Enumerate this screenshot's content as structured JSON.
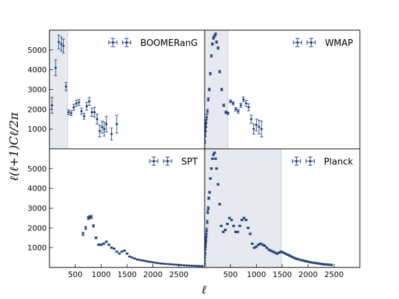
{
  "figure": {
    "xlabel": "ℓ",
    "ylabel": "ℓ(ℓ+1)Cℓ/2π"
  },
  "chart_data": [
    {
      "type": "scatter",
      "legend": "BOOMERanG",
      "legend_placement": "top-right",
      "xlim": [
        0,
        3000
      ],
      "ylim": [
        0,
        6000
      ],
      "yticks": [
        1000,
        2000,
        3000,
        4000,
        5000
      ],
      "xticks": [],
      "shaded_range": [
        0,
        350
      ],
      "series_color": "#1f3f7a",
      "x": [
        50,
        120,
        180,
        230,
        270,
        320,
        370,
        420,
        470,
        520,
        570,
        620,
        670,
        720,
        770,
        820,
        870,
        920,
        970,
        1020,
        1060,
        1100,
        1200,
        1300
      ],
      "y": [
        2200,
        4100,
        5400,
        5300,
        5200,
        3150,
        1850,
        1800,
        2100,
        2300,
        2350,
        1900,
        1650,
        2150,
        2400,
        1850,
        1850,
        1500,
        900,
        1100,
        1000,
        1250,
        750,
        1250
      ],
      "yerr": [
        400,
        400,
        350,
        350,
        350,
        200,
        120,
        120,
        150,
        150,
        150,
        150,
        150,
        200,
        200,
        200,
        250,
        250,
        300,
        300,
        350,
        400,
        300,
        450
      ]
    },
    {
      "type": "scatter",
      "legend": "WMAP",
      "legend_placement": "top-right",
      "xlim": [
        0,
        3000
      ],
      "ylim": [
        0,
        6000
      ],
      "yticks": [],
      "xticks": [],
      "shaded_range": [
        0,
        450
      ],
      "series_color": "#1f3f7a",
      "x": [
        3,
        6,
        10,
        15,
        20,
        30,
        40,
        55,
        70,
        90,
        110,
        130,
        150,
        170,
        190,
        210,
        230,
        260,
        290,
        330,
        370,
        410,
        450,
        500,
        550,
        600,
        650,
        700,
        750,
        800,
        850,
        900,
        950,
        1000,
        1050,
        1100
      ],
      "y": [
        300,
        900,
        1100,
        900,
        1100,
        1300,
        1600,
        1900,
        2500,
        3000,
        3800,
        4700,
        5300,
        5600,
        5700,
        5800,
        5400,
        5100,
        3900,
        3000,
        2200,
        1850,
        1800,
        2400,
        2300,
        2000,
        1900,
        2200,
        2500,
        2300,
        2100,
        1500,
        1000,
        1200,
        1100,
        1000
      ],
      "yerr": [
        700,
        500,
        400,
        300,
        250,
        200,
        150,
        100,
        80,
        70,
        60,
        60,
        60,
        60,
        60,
        60,
        60,
        60,
        60,
        60,
        60,
        60,
        60,
        70,
        80,
        90,
        100,
        100,
        120,
        150,
        180,
        200,
        250,
        300,
        350,
        400
      ]
    },
    {
      "type": "scatter",
      "legend": "SPT",
      "legend_placement": "top-right",
      "xlim": [
        0,
        3000
      ],
      "ylim": [
        0,
        6000
      ],
      "yticks": [
        1000,
        2000,
        3000,
        4000,
        5000
      ],
      "xticks": [
        500,
        1000,
        1500,
        2000,
        2500
      ],
      "shaded_range": null,
      "series_color": "#1f3f7a",
      "x": [
        650,
        700,
        750,
        780,
        810,
        850,
        900,
        950,
        1000,
        1050,
        1100,
        1150,
        1200,
        1250,
        1300,
        1350,
        1400,
        1450,
        1500,
        1550,
        1600,
        1650,
        1700,
        1750,
        1800,
        1850,
        1900,
        1950,
        2000,
        2050,
        2100,
        2150,
        2200,
        2250,
        2300,
        2350,
        2400,
        2450,
        2500,
        2550,
        2600,
        2650,
        2700,
        2750,
        2800,
        2850,
        2900,
        2950
      ],
      "y": [
        1700,
        2000,
        2500,
        2550,
        2550,
        2100,
        1500,
        1150,
        1150,
        1200,
        1300,
        1150,
        1000,
        950,
        800,
        700,
        800,
        850,
        700,
        550,
        500,
        450,
        400,
        380,
        350,
        330,
        300,
        280,
        260,
        240,
        220,
        200,
        190,
        180,
        170,
        160,
        150,
        140,
        130,
        120,
        110,
        100,
        95,
        90,
        85,
        80,
        75,
        70
      ],
      "yerr": [
        80,
        80,
        80,
        80,
        80,
        60,
        50,
        40,
        40,
        40,
        40,
        35,
        35,
        30,
        30,
        30,
        30,
        30,
        30,
        25,
        25,
        20,
        20,
        20,
        20,
        20,
        20,
        20,
        15,
        15,
        15,
        15,
        15,
        15,
        15,
        15,
        15,
        15,
        15,
        15,
        15,
        15,
        15,
        15,
        15,
        15,
        15,
        15
      ]
    },
    {
      "type": "scatter",
      "legend": "Planck",
      "legend_placement": "top-right",
      "xlim": [
        0,
        3000
      ],
      "ylim": [
        0,
        6000
      ],
      "yticks": [],
      "xticks": [
        500,
        1000,
        1500,
        2000,
        2500
      ],
      "shaded_range": [
        0,
        1480
      ],
      "series_color": "#1f3f7a",
      "x": [
        2,
        4,
        6,
        8,
        10,
        12,
        15,
        18,
        22,
        27,
        33,
        40,
        50,
        60,
        70,
        80,
        95,
        110,
        130,
        150,
        170,
        190,
        210,
        230,
        260,
        290,
        320,
        360,
        400,
        440,
        480,
        520,
        560,
        600,
        640,
        680,
        720,
        760,
        800,
        840,
        880,
        920,
        960,
        1000,
        1040,
        1080,
        1120,
        1160,
        1200,
        1240,
        1280,
        1320,
        1360,
        1400,
        1440,
        1480,
        1520,
        1560,
        1600,
        1640,
        1680,
        1720,
        1760,
        1800,
        1850,
        1900,
        1950,
        2000,
        2050,
        2100,
        2150,
        2200,
        2250,
        2300,
        2350,
        2400,
        2450
      ],
      "y": [
        200,
        500,
        700,
        900,
        1000,
        1100,
        1200,
        1300,
        1400,
        1500,
        1700,
        1900,
        2300,
        2800,
        3000,
        3500,
        3800,
        4500,
        5000,
        5500,
        5700,
        5800,
        5500,
        5000,
        4200,
        3200,
        2100,
        1800,
        1900,
        2200,
        2500,
        2400,
        2100,
        1800,
        1800,
        2100,
        2400,
        2500,
        2400,
        2000,
        1700,
        1200,
        1000,
        1050,
        1150,
        1200,
        1150,
        1100,
        1000,
        900,
        850,
        800,
        750,
        700,
        750,
        800,
        750,
        700,
        650,
        600,
        550,
        500,
        450,
        420,
        380,
        350,
        320,
        290,
        260,
        240,
        220,
        200,
        180,
        160,
        150,
        140,
        130
      ],
      "yerr": [
        500,
        400,
        350,
        300,
        250,
        220,
        200,
        180,
        160,
        140,
        120,
        100,
        90,
        80,
        70,
        60,
        50,
        40,
        40,
        40,
        40,
        40,
        40,
        40,
        40,
        40,
        40,
        40,
        40,
        40,
        40,
        40,
        40,
        40,
        40,
        40,
        40,
        40,
        40,
        40,
        40,
        40,
        40,
        40,
        40,
        40,
        40,
        40,
        40,
        40,
        40,
        40,
        40,
        40,
        40,
        40,
        40,
        40,
        40,
        40,
        40,
        40,
        40,
        40,
        40,
        40,
        40,
        40,
        40,
        40,
        40,
        40,
        40,
        40,
        40,
        40,
        40
      ]
    }
  ]
}
